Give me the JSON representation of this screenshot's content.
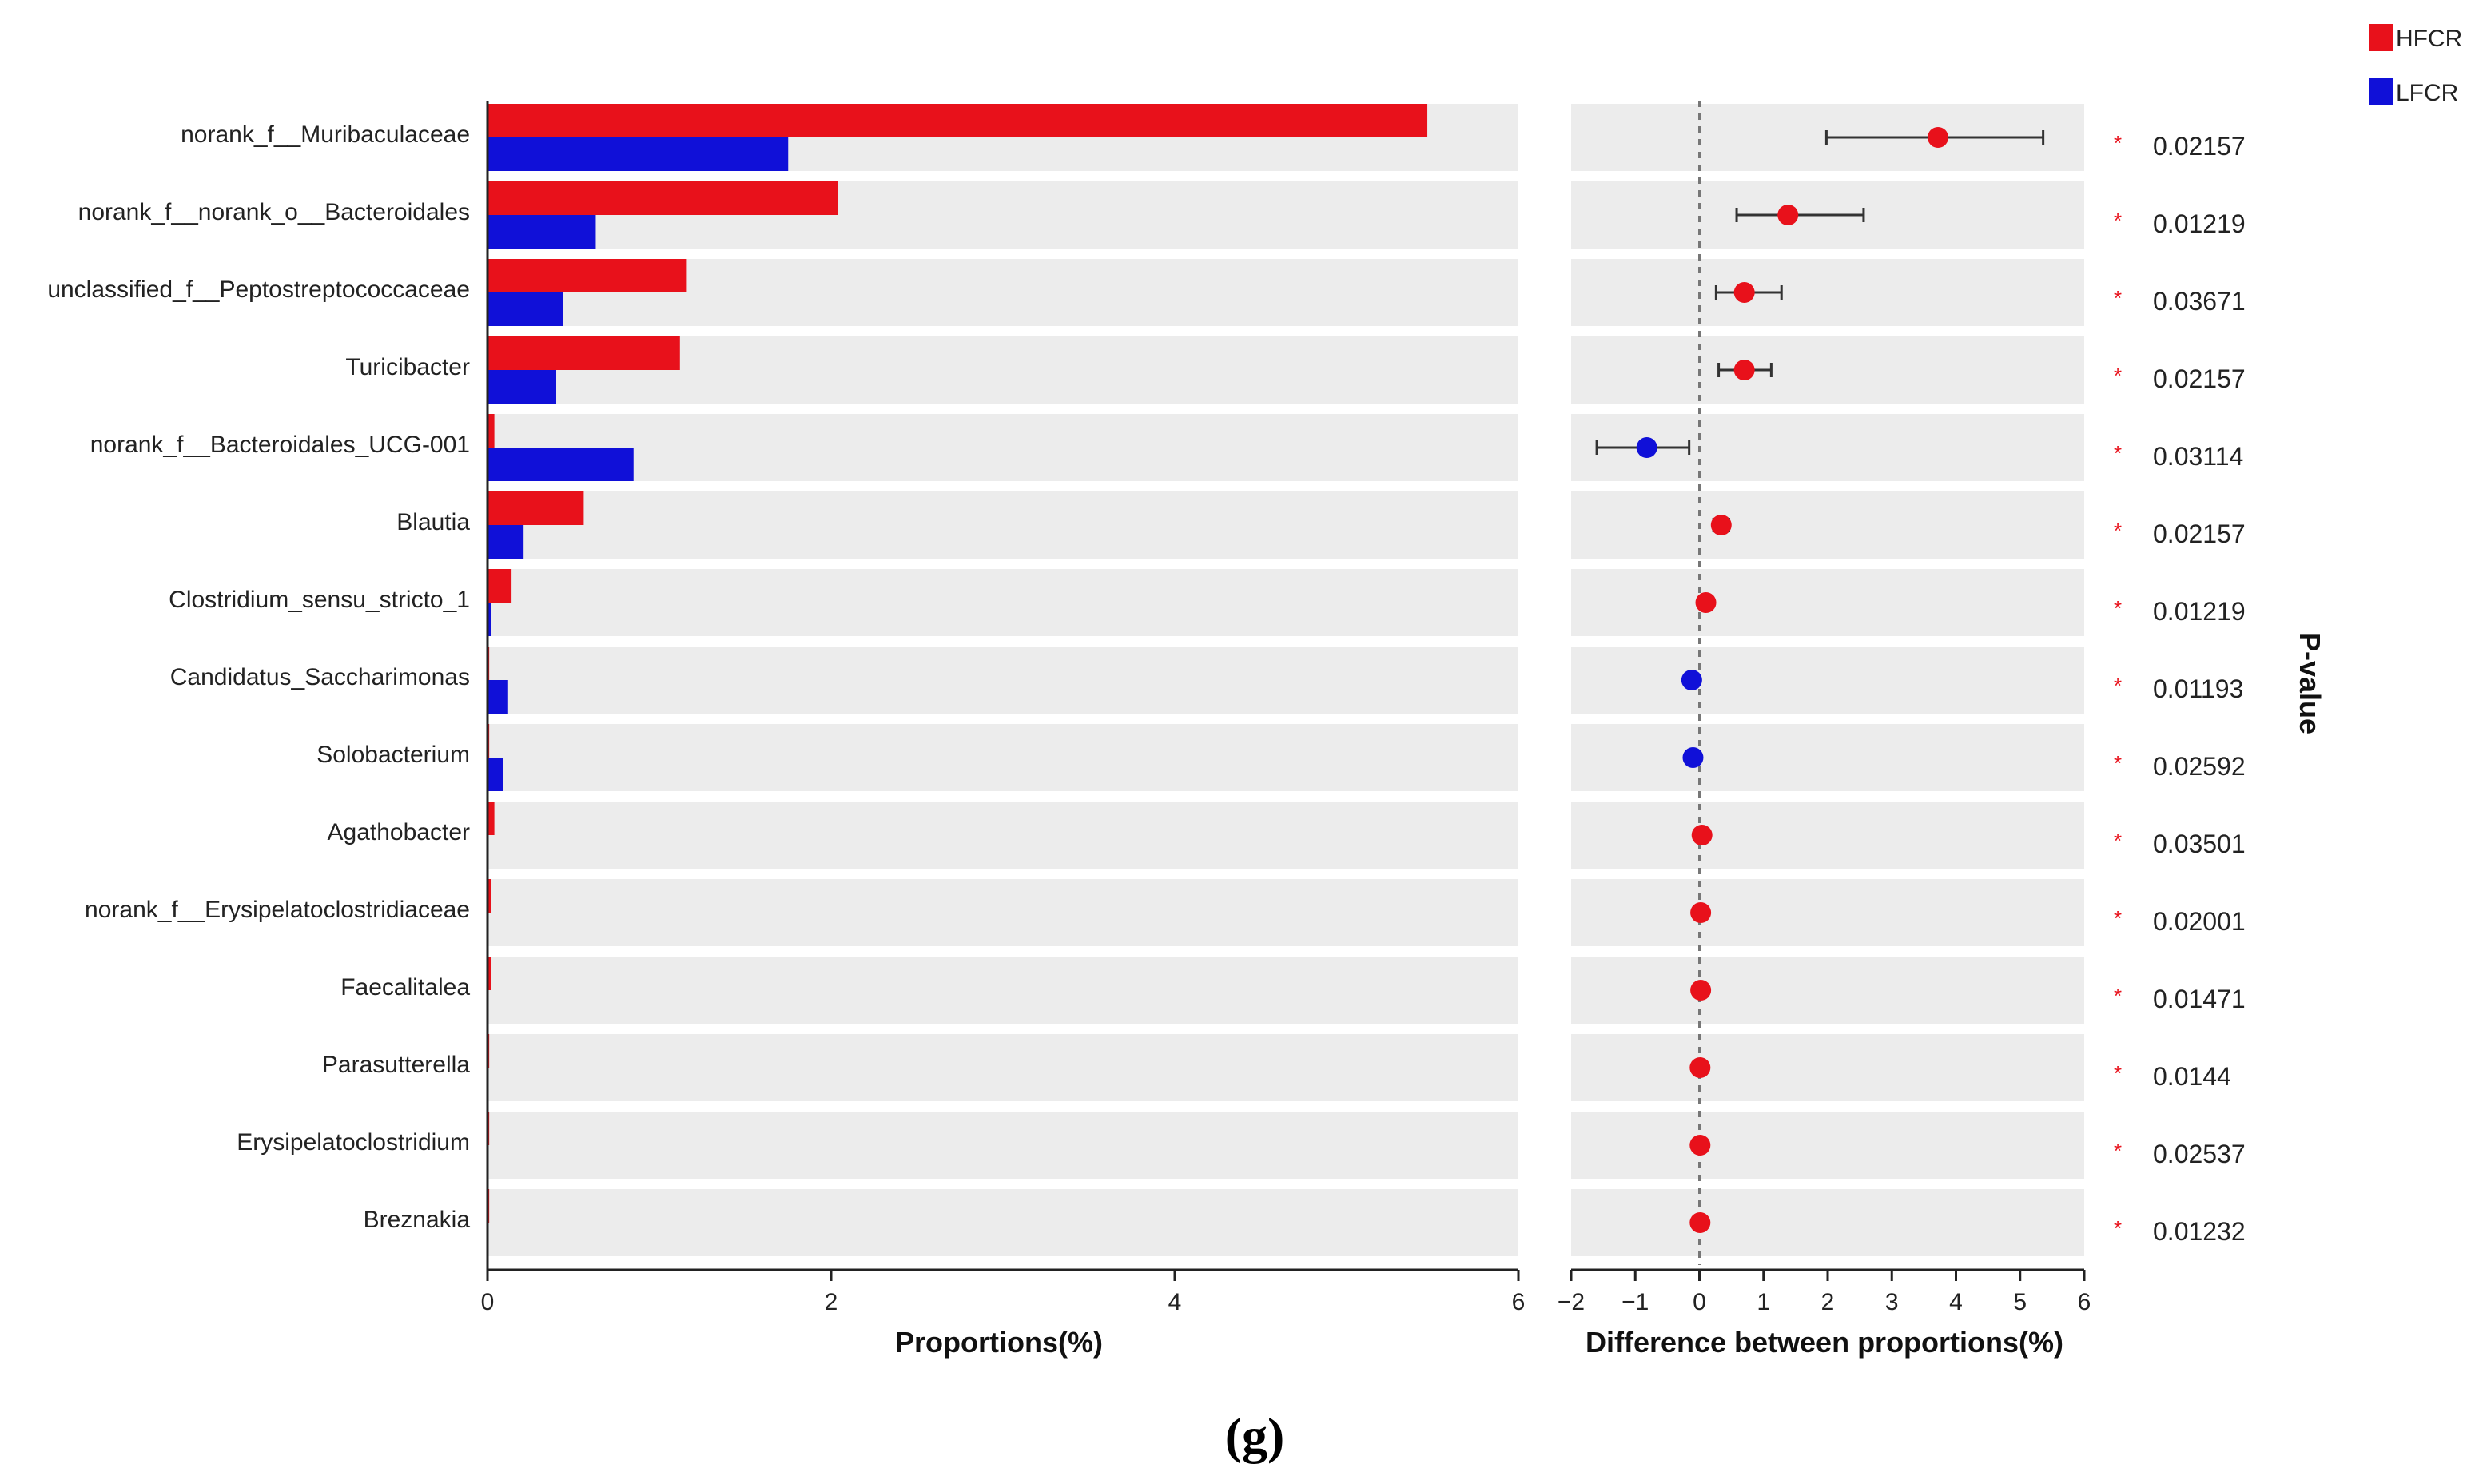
{
  "chart_data": {
    "type": "bar",
    "title": "",
    "categories": [
      "norank_f__Muribaculaceae",
      "norank_f__norank_o__Bacteroidales",
      "unclassified_f__Peptostreptococcaceae",
      "Turicibacter",
      "norank_f__Bacteroidales_UCG-001",
      "Blautia",
      "Clostridium_sensu_stricto_1",
      "Candidatus_Saccharimonas",
      "Solobacterium",
      "Agathobacter",
      "norank_f__Erysipelatoclostridiaceae",
      "Faecalitalea",
      "Parasutterella",
      "Erysipelatoclostridium",
      "Breznakia"
    ],
    "series": [
      {
        "name": "HFCR",
        "color": "#e8111b",
        "values": [
          5.47,
          2.04,
          1.16,
          1.12,
          0.04,
          0.56,
          0.14,
          0.01,
          0.01,
          0.04,
          0.02,
          0.02,
          0.01,
          0.01,
          0.01
        ]
      },
      {
        "name": "LFCR",
        "color": "#1010d8",
        "values": [
          1.75,
          0.63,
          0.44,
          0.4,
          0.85,
          0.21,
          0.02,
          0.12,
          0.09,
          0.0,
          0.0,
          0.0,
          0.0,
          0.0,
          0.0
        ]
      }
    ],
    "xlabel": "Proportions(%)",
    "xlim": [
      0,
      6
    ],
    "xticks": [
      "0",
      "2",
      "4",
      "6"
    ],
    "difference": {
      "xlabel": "Difference between proportions(%)",
      "xlim": [
        -2,
        6
      ],
      "xticks": [
        "−2",
        "−1",
        "0",
        "1",
        "2",
        "3",
        "4",
        "5",
        "6"
      ],
      "estimates": [
        3.72,
        1.38,
        0.7,
        0.7,
        -0.82,
        0.34,
        0.1,
        -0.12,
        -0.1,
        0.04,
        0.02,
        0.02,
        0.01,
        0.01,
        0.01
      ],
      "ci_low": [
        1.98,
        0.58,
        0.26,
        0.3,
        -1.6,
        0.22,
        null,
        null,
        null,
        null,
        null,
        null,
        null,
        null,
        null
      ],
      "ci_high": [
        5.36,
        2.56,
        1.28,
        1.12,
        -0.16,
        0.46,
        null,
        null,
        null,
        null,
        null,
        null,
        null,
        null,
        null
      ],
      "point_colors": [
        "#e8111b",
        "#e8111b",
        "#e8111b",
        "#e8111b",
        "#1010d8",
        "#e8111b",
        "#e8111b",
        "#1010d8",
        "#1010d8",
        "#e8111b",
        "#e8111b",
        "#e8111b",
        "#e8111b",
        "#e8111b",
        "#e8111b"
      ]
    },
    "p_values": [
      "0.02157",
      "0.01219",
      "0.03671",
      "0.02157",
      "0.03114",
      "0.02157",
      "0.01219",
      "0.01193",
      "0.02592",
      "0.03501",
      "0.02001",
      "0.01471",
      "0.0144",
      "0.02537",
      "0.01232"
    ],
    "significance_marker": "*",
    "p_value_title": "P-value",
    "legend": [
      {
        "label": "HFCR",
        "color": "#e8111b"
      },
      {
        "label": "LFCR",
        "color": "#1010d8"
      }
    ],
    "legend_position": "top-right",
    "grid": false,
    "row_band_color": "#ececec",
    "panel_label": "(g)"
  }
}
